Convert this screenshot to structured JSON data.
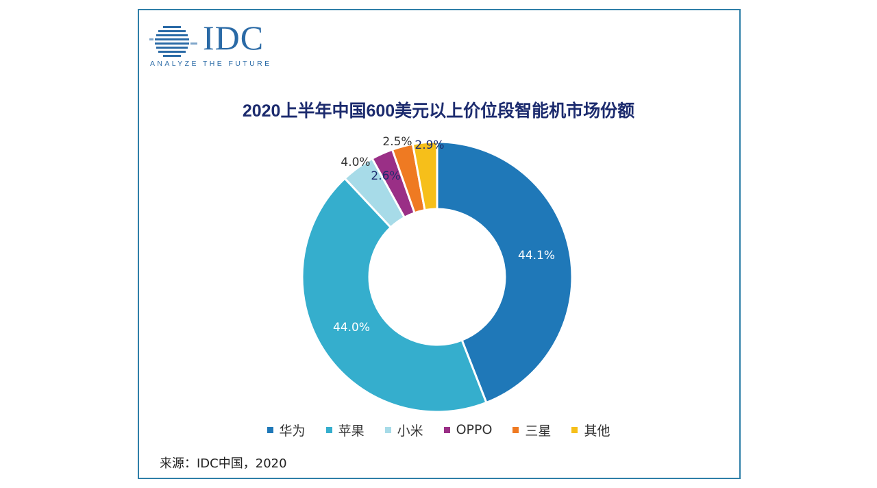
{
  "brand": {
    "name": "IDC",
    "tagline": "ANALYZE THE FUTURE",
    "color": "#2a6aa6"
  },
  "source": "来源：IDC中国，2020",
  "chart_data": {
    "type": "pie",
    "style": "donut",
    "title": "2020上半年中国600美元以上价位段智能机市场份额",
    "unit": "%",
    "legend_position": "bottom",
    "categories": [
      "华为",
      "苹果",
      "小米",
      "OPPO",
      "三星",
      "其他"
    ],
    "values": [
      44.1,
      44.0,
      4.0,
      2.6,
      2.5,
      2.9
    ],
    "labels": [
      "44.1%",
      "44.0%",
      "4.0%",
      "2.6%",
      "2.5%",
      "2.9%"
    ],
    "colors": [
      "#1f78b8",
      "#35aecd",
      "#a7dbe8",
      "#9a2f86",
      "#ef7a22",
      "#f6bf1a"
    ]
  }
}
